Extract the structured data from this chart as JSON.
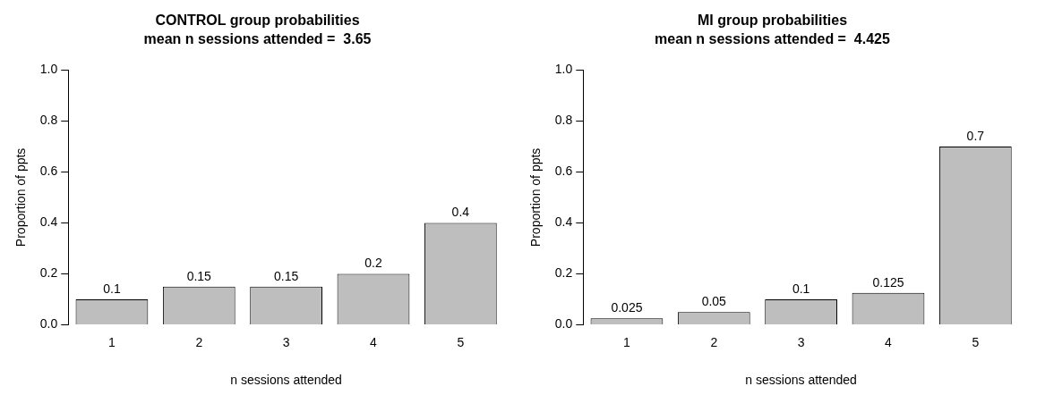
{
  "chart_data": [
    {
      "type": "bar",
      "title": "CONTROL group probabilities",
      "subtitle": "mean n sessions attended =  3.65",
      "xlabel": "n sessions attended",
      "ylabel": "Proportion of ppts",
      "categories": [
        "1",
        "2",
        "3",
        "4",
        "5"
      ],
      "values": [
        0.1,
        0.15,
        0.15,
        0.2,
        0.4
      ],
      "color": "#bebebe",
      "ylim": [
        0,
        1
      ],
      "yticks": [
        {
          "value": 0,
          "label": "0.0"
        },
        {
          "value": 0.2,
          "label": "0.2"
        },
        {
          "value": 0.4,
          "label": "0.4"
        },
        {
          "value": 0.6,
          "label": "0.6"
        },
        {
          "value": 0.8,
          "label": "0.8"
        },
        {
          "value": 1,
          "label": "1.0"
        }
      ],
      "data_labels": true,
      "grid": false,
      "legend": false
    },
    {
      "type": "bar",
      "title": "MI group probabilities",
      "subtitle": "mean n sessions attended =  4.425",
      "xlabel": "n sessions attended",
      "ylabel": "Proportion of ppts",
      "categories": [
        "1",
        "2",
        "3",
        "4",
        "5"
      ],
      "values": [
        0.025,
        0.05,
        0.1,
        0.125,
        0.7
      ],
      "color": "#bebebe",
      "ylim": [
        0,
        1
      ],
      "yticks": [
        {
          "value": 0,
          "label": "0.0"
        },
        {
          "value": 0.2,
          "label": "0.2"
        },
        {
          "value": 0.4,
          "label": "0.4"
        },
        {
          "value": 0.6,
          "label": "0.6"
        },
        {
          "value": 0.8,
          "label": "0.8"
        },
        {
          "value": 1,
          "label": "1.0"
        }
      ],
      "data_labels": true,
      "grid": false,
      "legend": false
    }
  ]
}
